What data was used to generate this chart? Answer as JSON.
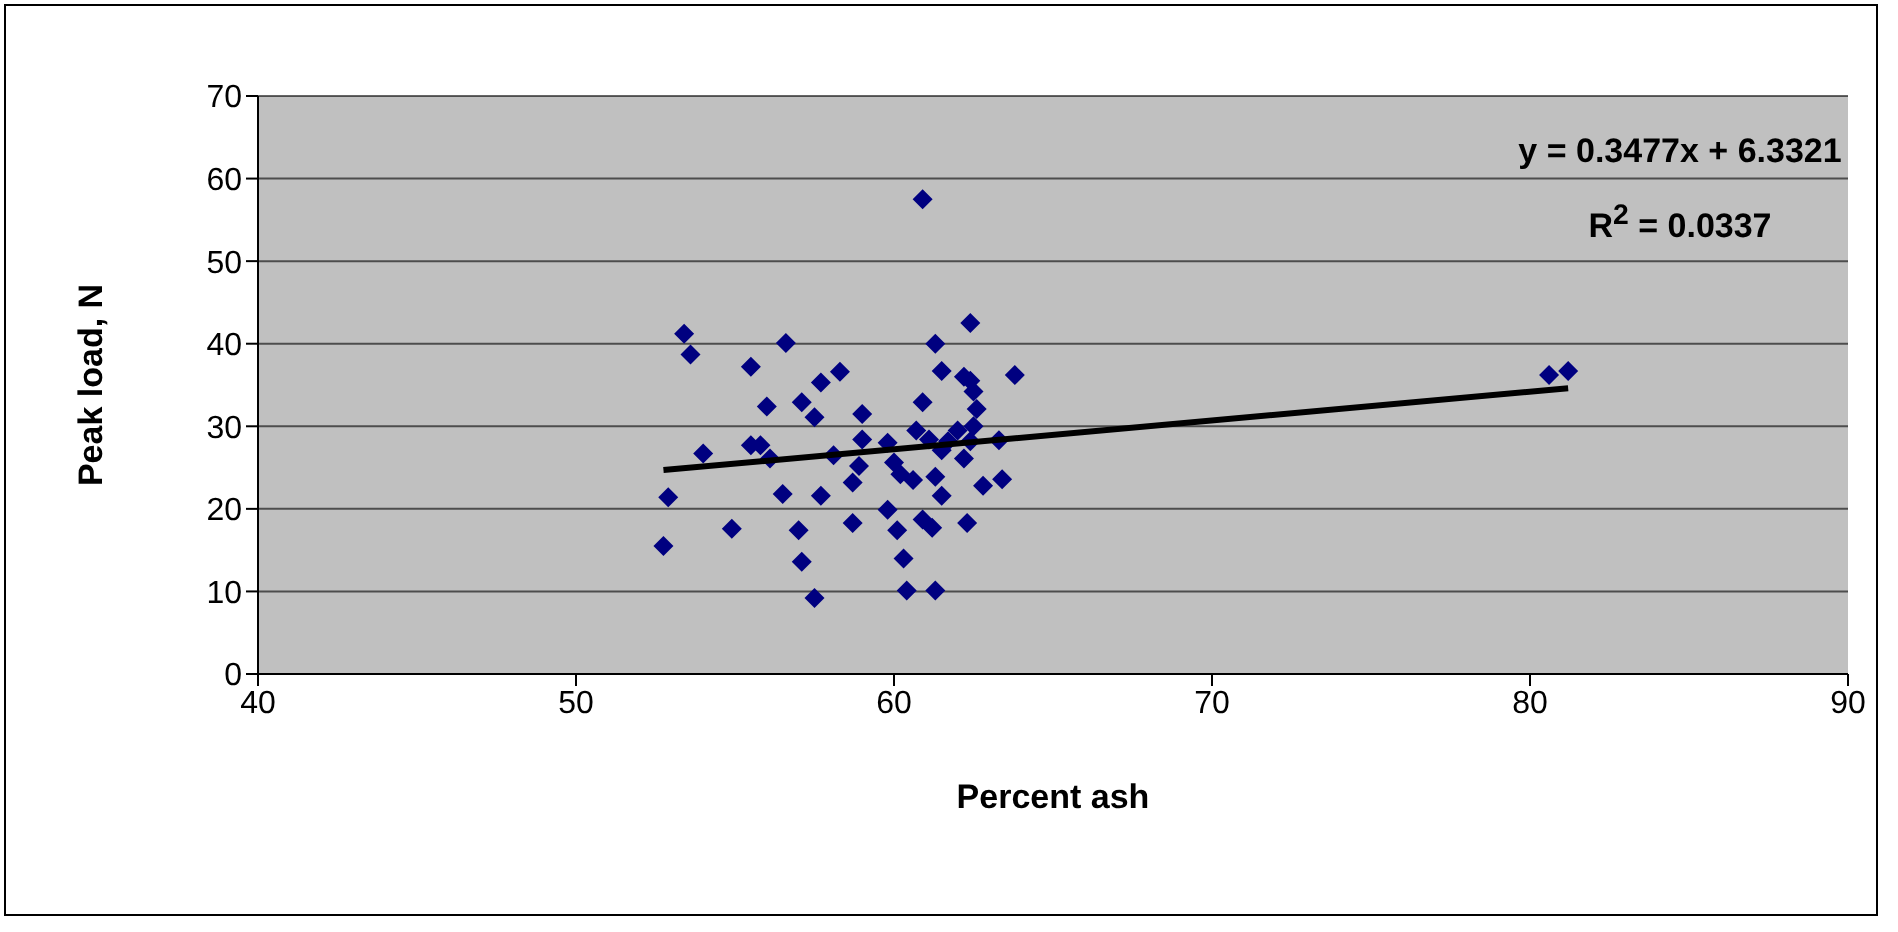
{
  "chart_data": {
    "type": "scatter",
    "xlabel": "Percent ash",
    "ylabel": "Peak load, N",
    "annotations": [
      "y = 0.3477x + 6.3321",
      "R$^{2}$ = 0.0337"
    ],
    "x": [
      52.75,
      52.9,
      53.4,
      53.6,
      54.0,
      54.9,
      55.5,
      55.5,
      55.8,
      56.0,
      56.1,
      56.5,
      56.6,
      57.0,
      57.1,
      57.1,
      57.5,
      57.5,
      57.7,
      57.7,
      58.1,
      58.3,
      58.7,
      58.7,
      58.9,
      59.0,
      59.0,
      59.8,
      59.8,
      60.0,
      60.1,
      60.2,
      60.3,
      60.4,
      60.6,
      60.7,
      60.9,
      60.9,
      60.9,
      61.1,
      61.2,
      61.3,
      61.3,
      61.3,
      61.5,
      61.5,
      61.5,
      61.7,
      62.0,
      62.2,
      62.2,
      62.3,
      62.4,
      62.4,
      62.5,
      62.6,
      62.5,
      62.4,
      62.8,
      63.3,
      63.4,
      63.8,
      80.6,
      81.2
    ],
    "series": [
      {
        "color": "#000080",
        "marker": "diamond",
        "values": [
          15.5,
          21.4,
          41.2,
          38.7,
          26.7,
          17.6,
          37.2,
          27.7,
          27.7,
          32.4,
          26.1,
          21.8,
          40.1,
          17.4,
          13.6,
          32.9,
          31.1,
          9.2,
          21.6,
          35.3,
          26.5,
          36.6,
          23.2,
          18.3,
          25.2,
          31.5,
          28.4,
          19.9,
          28.0,
          25.6,
          17.4,
          24.2,
          14.0,
          10.1,
          23.5,
          29.5,
          57.5,
          32.9,
          18.7,
          28.4,
          17.7,
          10.1,
          40.0,
          23.9,
          27.1,
          21.6,
          36.7,
          28.2,
          29.5,
          36.0,
          26.1,
          18.3,
          35.5,
          42.5,
          34.2,
          32.1,
          30.0,
          28.2,
          22.8,
          28.3,
          23.6,
          36.2,
          36.2,
          36.7
        ]
      },
      {
        "type": "line",
        "color": "#000000",
        "marker": "none",
        "line_style": "solid",
        "x": [
          52.75,
          81.2
        ],
        "values": [
          24.7,
          34.6
        ]
      }
    ],
    "xlim": [
      40,
      90
    ],
    "xticks": [
      40,
      50,
      60,
      70,
      80,
      90
    ],
    "ylim": [
      0,
      70
    ],
    "yticks": [
      0,
      10,
      20,
      30,
      40,
      50,
      60,
      70
    ],
    "grid": "y",
    "legend": false
  }
}
